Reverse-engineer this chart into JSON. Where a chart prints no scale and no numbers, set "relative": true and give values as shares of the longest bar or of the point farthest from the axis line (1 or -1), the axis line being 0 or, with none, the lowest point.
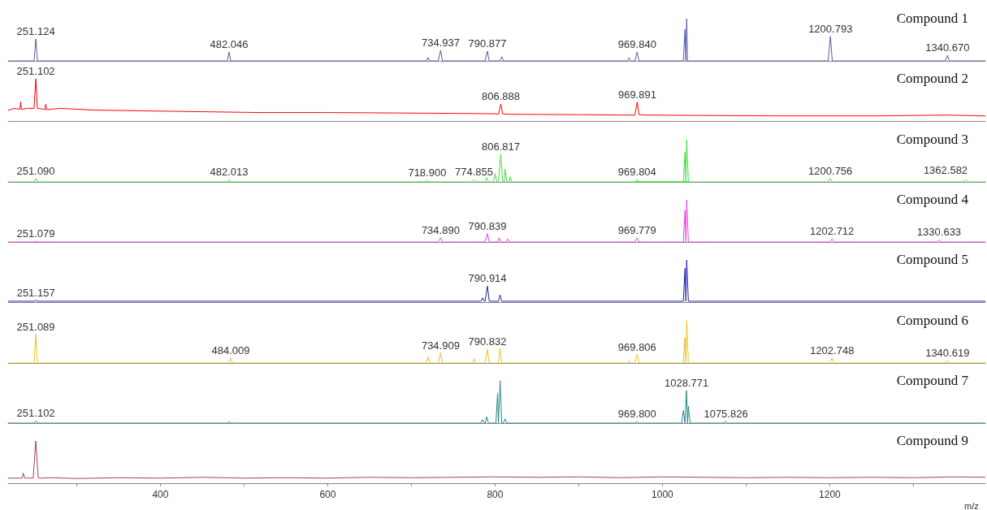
{
  "chart_data": [
    {
      "type": "line",
      "title": "Compound 1",
      "relative": true,
      "xlim": [
        218,
        1386
      ],
      "tick_labels": false,
      "series": [
        {
          "color": "#5a5aa6",
          "x": [
            218,
            249,
            251.124,
            253,
            255,
            480,
            482.046,
            484,
            486,
            718,
            720,
            722,
            732,
            734.937,
            737,
            788,
            790.877,
            793,
            806,
            808,
            810,
            958,
            960,
            962,
            967,
            969.84,
            972,
            1025,
            1027,
            1028,
            1029,
            1030,
            1031,
            1198,
            1200.793,
            1203,
            1338,
            1340.67,
            1343,
            1386
          ],
          "values": [
            0,
            0,
            0.52,
            0,
            0,
            0,
            0.21,
            0,
            0,
            0,
            0.08,
            0,
            0,
            0.25,
            0,
            0,
            0.23,
            0,
            0,
            0.1,
            0,
            0,
            0.07,
            0,
            0,
            0.21,
            0,
            0,
            0.75,
            0,
            1,
            0,
            0,
            0,
            0.58,
            0,
            0,
            0.13,
            0,
            0
          ]
        }
      ],
      "annotations": [
        {
          "text": "251.124",
          "x": 251.124,
          "y": 0.52
        },
        {
          "text": "482.046",
          "x": 482.046,
          "y": 0.21
        },
        {
          "text": "734.937",
          "x": 734.937,
          "y": 0.25
        },
        {
          "text": "790.877",
          "x": 790.877,
          "y": 0.23
        },
        {
          "text": "969.840",
          "x": 969.84,
          "y": 0.21
        },
        {
          "text": "1200.793",
          "x": 1200.793,
          "y": 0.58
        },
        {
          "text": "1340.670",
          "x": 1340.67,
          "y": 0.13
        }
      ]
    },
    {
      "type": "line",
      "title": "Compound 2",
      "relative": true,
      "xlim": [
        218,
        1386
      ],
      "tick_labels": false,
      "series": [
        {
          "color": "#ff0000",
          "x": [
            218,
            225,
            232,
            233,
            234,
            240,
            249,
            251.102,
            253,
            260,
            262,
            263,
            264,
            280,
            320,
            380,
            450,
            520,
            600,
            680,
            760,
            800,
            804,
            806.888,
            809,
            815,
            900,
            960,
            967,
            969.891,
            972,
            980,
            1060,
            1150,
            1250,
            1340,
            1386
          ],
          "values": [
            0.25,
            0.3,
            0.28,
            0.45,
            0.27,
            0.3,
            0.3,
            1,
            0.3,
            0.28,
            0.27,
            0.4,
            0.27,
            0.3,
            0.26,
            0.24,
            0.22,
            0.2,
            0.2,
            0.19,
            0.18,
            0.17,
            0.16,
            0.4,
            0.17,
            0.16,
            0.15,
            0.14,
            0.14,
            0.45,
            0.15,
            0.14,
            0.13,
            0.12,
            0.12,
            0.14,
            0.12
          ]
        }
      ],
      "annotations": [
        {
          "text": "251.102",
          "x": 251.102,
          "y": 1
        },
        {
          "text": "806.888",
          "x": 806.888,
          "y": 0.4
        },
        {
          "text": "969.891",
          "x": 969.891,
          "y": 0.45
        }
      ]
    },
    {
      "type": "line",
      "title": "Compound 3",
      "relative": true,
      "xlim": [
        218,
        1386
      ],
      "tick_labels": false,
      "series": [
        {
          "color": "#44dd44",
          "x": [
            218,
            249,
            251.09,
            253,
            480,
            482.013,
            484,
            716,
            718.9,
            721,
            772,
            774.855,
            777,
            788,
            790,
            792,
            798,
            800,
            802,
            804,
            806.817,
            809,
            811,
            812,
            814,
            817,
            818,
            820,
            1025,
            1027,
            1028,
            1029,
            1031,
            968,
            969.804,
            972,
            1198,
            1200.756,
            1203,
            1360,
            1362.582,
            1365,
            1386
          ],
          "values": [
            0,
            0,
            0.08,
            0,
            0,
            0.05,
            0,
            0,
            0.03,
            0,
            0,
            0.05,
            0,
            0,
            0.1,
            0,
            0,
            0.2,
            0,
            0,
            0.66,
            0,
            0,
            0.3,
            0,
            0,
            0.12,
            0,
            0,
            0.7,
            0,
            1,
            0,
            0,
            0.06,
            0,
            0,
            0.08,
            0,
            0,
            0.05,
            0,
            0
          ]
        }
      ],
      "annotations": [
        {
          "text": "251.090",
          "x": 251.09,
          "y": 0.08
        },
        {
          "text": "482.013",
          "x": 482.013,
          "y": 0.05
        },
        {
          "text": "718.900",
          "x": 718.9,
          "y": 0.03
        },
        {
          "text": "774.855",
          "x": 774.855,
          "y": 0.05
        },
        {
          "text": "806.817",
          "x": 806.817,
          "y": 0.66
        },
        {
          "text": "969.804",
          "x": 969.804,
          "y": 0.06
        },
        {
          "text": "1200.756",
          "x": 1200.756,
          "y": 0.08
        },
        {
          "text": "1362.582",
          "x": 1362.582,
          "y": 0.05
        }
      ]
    },
    {
      "type": "line",
      "title": "Compound 4",
      "relative": true,
      "xlim": [
        218,
        1386
      ],
      "tick_labels": false,
      "series": [
        {
          "color": "#ee44dd",
          "x": [
            218,
            249,
            251.079,
            253,
            732,
            734.89,
            737,
            788,
            790.839,
            793,
            803,
            805,
            807,
            813,
            815,
            817,
            967,
            969.779,
            972,
            1025,
            1027,
            1028,
            1029,
            1031,
            1200,
            1202.712,
            1205,
            1328,
            1330.633,
            1333,
            1386
          ],
          "values": [
            0,
            0,
            0.02,
            0,
            0,
            0.1,
            0,
            0,
            0.2,
            0,
            0,
            0.1,
            0,
            0,
            0.07,
            0,
            0,
            0.1,
            0,
            0,
            0.75,
            0,
            1,
            0,
            0,
            0.07,
            0,
            0,
            0.05,
            0,
            0
          ]
        }
      ],
      "annotations": [
        {
          "text": "251.079",
          "x": 251.079,
          "y": 0.02
        },
        {
          "text": "734.890",
          "x": 734.89,
          "y": 0.1
        },
        {
          "text": "790.839",
          "x": 790.839,
          "y": 0.2
        },
        {
          "text": "969.779",
          "x": 969.779,
          "y": 0.1
        },
        {
          "text": "1202.712",
          "x": 1202.712,
          "y": 0.07
        },
        {
          "text": "1330.633",
          "x": 1330.633,
          "y": 0.05
        }
      ]
    },
    {
      "type": "line",
      "title": "Compound 5",
      "relative": true,
      "xlim": [
        218,
        1386
      ],
      "tick_labels": false,
      "series": [
        {
          "color": "#2222b0",
          "x": [
            218,
            249,
            251.157,
            253,
            783,
            785,
            787,
            788,
            790.914,
            793,
            804,
            806,
            808,
            1025,
            1027,
            1028,
            1029,
            1031,
            1386
          ],
          "values": [
            0.02,
            0.02,
            0.04,
            0.02,
            0.02,
            0.1,
            0.02,
            0.02,
            0.38,
            0.02,
            0.02,
            0.17,
            0.02,
            0.02,
            0.8,
            0.02,
            1,
            0.02,
            0.02
          ]
        }
      ],
      "annotations": [
        {
          "text": "251.157",
          "x": 251.157,
          "y": 0.04
        },
        {
          "text": "790.914",
          "x": 790.914,
          "y": 0.38
        }
      ]
    },
    {
      "type": "line",
      "title": "Compound 6",
      "relative": true,
      "xlim": [
        218,
        1386
      ],
      "tick_labels": false,
      "series": [
        {
          "color": "#f0c020",
          "x": [
            218,
            249,
            251.089,
            253,
            482,
            484.009,
            486,
            718,
            720,
            722,
            732,
            734.909,
            737,
            773,
            775,
            777,
            788,
            790.832,
            793,
            804,
            806,
            808,
            958,
            960,
            962,
            967,
            969.806,
            972,
            1025,
            1027,
            1028,
            1029,
            1031,
            1200,
            1202.748,
            1205,
            1338,
            1340.619,
            1343,
            1386
          ],
          "values": [
            0,
            0,
            0.68,
            0,
            0,
            0.12,
            0,
            0,
            0.15,
            0,
            0,
            0.24,
            0,
            0,
            0.1,
            0,
            0,
            0.32,
            0,
            0,
            0.35,
            0,
            0,
            0.05,
            0,
            0,
            0.2,
            0,
            0,
            0.6,
            0,
            1,
            0,
            0,
            0.12,
            0,
            0,
            0.06,
            0,
            0
          ]
        }
      ],
      "annotations": [
        {
          "text": "251.089",
          "x": 251.089,
          "y": 0.68
        },
        {
          "text": "484.009",
          "x": 484.009,
          "y": 0.12
        },
        {
          "text": "734.909",
          "x": 734.909,
          "y": 0.24
        },
        {
          "text": "790.832",
          "x": 790.832,
          "y": 0.32
        },
        {
          "text": "969.806",
          "x": 969.806,
          "y": 0.2
        },
        {
          "text": "1202.748",
          "x": 1202.748,
          "y": 0.12
        },
        {
          "text": "1340.619",
          "x": 1340.619,
          "y": 0.06
        }
      ]
    },
    {
      "type": "line",
      "title": "Compound 7",
      "relative": true,
      "xlim": [
        218,
        1386
      ],
      "tick_labels": false,
      "series": [
        {
          "color": "#1f8a88",
          "x": [
            218,
            249,
            251.102,
            253,
            480,
            482,
            484,
            783,
            785,
            787,
            788,
            790,
            792,
            801,
            803,
            804,
            806,
            808,
            810,
            812,
            814,
            967,
            969.8,
            972,
            1023,
            1025,
            1027,
            1028.771,
            1030,
            1031,
            1033,
            1073,
            1075.826,
            1078,
            1386
          ],
          "values": [
            0,
            0,
            0.05,
            0,
            0,
            0.03,
            0,
            0,
            0.08,
            0,
            0,
            0.15,
            0,
            0,
            0.7,
            0,
            1,
            0,
            0,
            0.1,
            0,
            0,
            0.03,
            0,
            0,
            0.3,
            0,
            0.77,
            0,
            0.4,
            0,
            0,
            0.04,
            0,
            0
          ]
        }
      ],
      "annotations": [
        {
          "text": "251.102",
          "x": 251.102,
          "y": 0.05
        },
        {
          "text": "969.800",
          "x": 969.8,
          "y": 0.03
        },
        {
          "text": "1028.771",
          "x": 1028.771,
          "y": 0.77
        },
        {
          "text": "1075.826",
          "x": 1075.826,
          "y": 0.04
        }
      ]
    },
    {
      "type": "line",
      "title": "Compound 9",
      "relative": true,
      "xlim": [
        218,
        1386
      ],
      "xlabel": "m/z",
      "xticks": [
        {
          "value": 300,
          "label": null
        },
        400,
        {
          "value": 500,
          "label": null
        },
        600,
        {
          "value": 700,
          "label": null
        },
        800,
        {
          "value": 900,
          "label": null
        },
        1000,
        {
          "value": 1100,
          "label": null
        },
        1200,
        {
          "value": 1300,
          "label": null
        }
      ],
      "series": [
        {
          "color": "#a0406e",
          "x": [
            218,
            225,
            235,
            236,
            238,
            240,
            248,
            251,
            254,
            256,
            270,
            300,
            350,
            400,
            450,
            500,
            550,
            600,
            650,
            700,
            750,
            800,
            850,
            900,
            950,
            1000,
            1050,
            1100,
            1150,
            1200,
            1250,
            1300,
            1350,
            1386
          ],
          "values": [
            0.12,
            0.12,
            0.12,
            0.24,
            0.12,
            0.12,
            0.12,
            1,
            0.13,
            0.12,
            0.13,
            0.11,
            0.13,
            0.12,
            0.14,
            0.12,
            0.13,
            0.12,
            0.14,
            0.13,
            0.14,
            0.15,
            0.14,
            0.15,
            0.13,
            0.15,
            0.14,
            0.13,
            0.14,
            0.13,
            0.14,
            0.13,
            0.15,
            0.14
          ]
        }
      ]
    }
  ]
}
